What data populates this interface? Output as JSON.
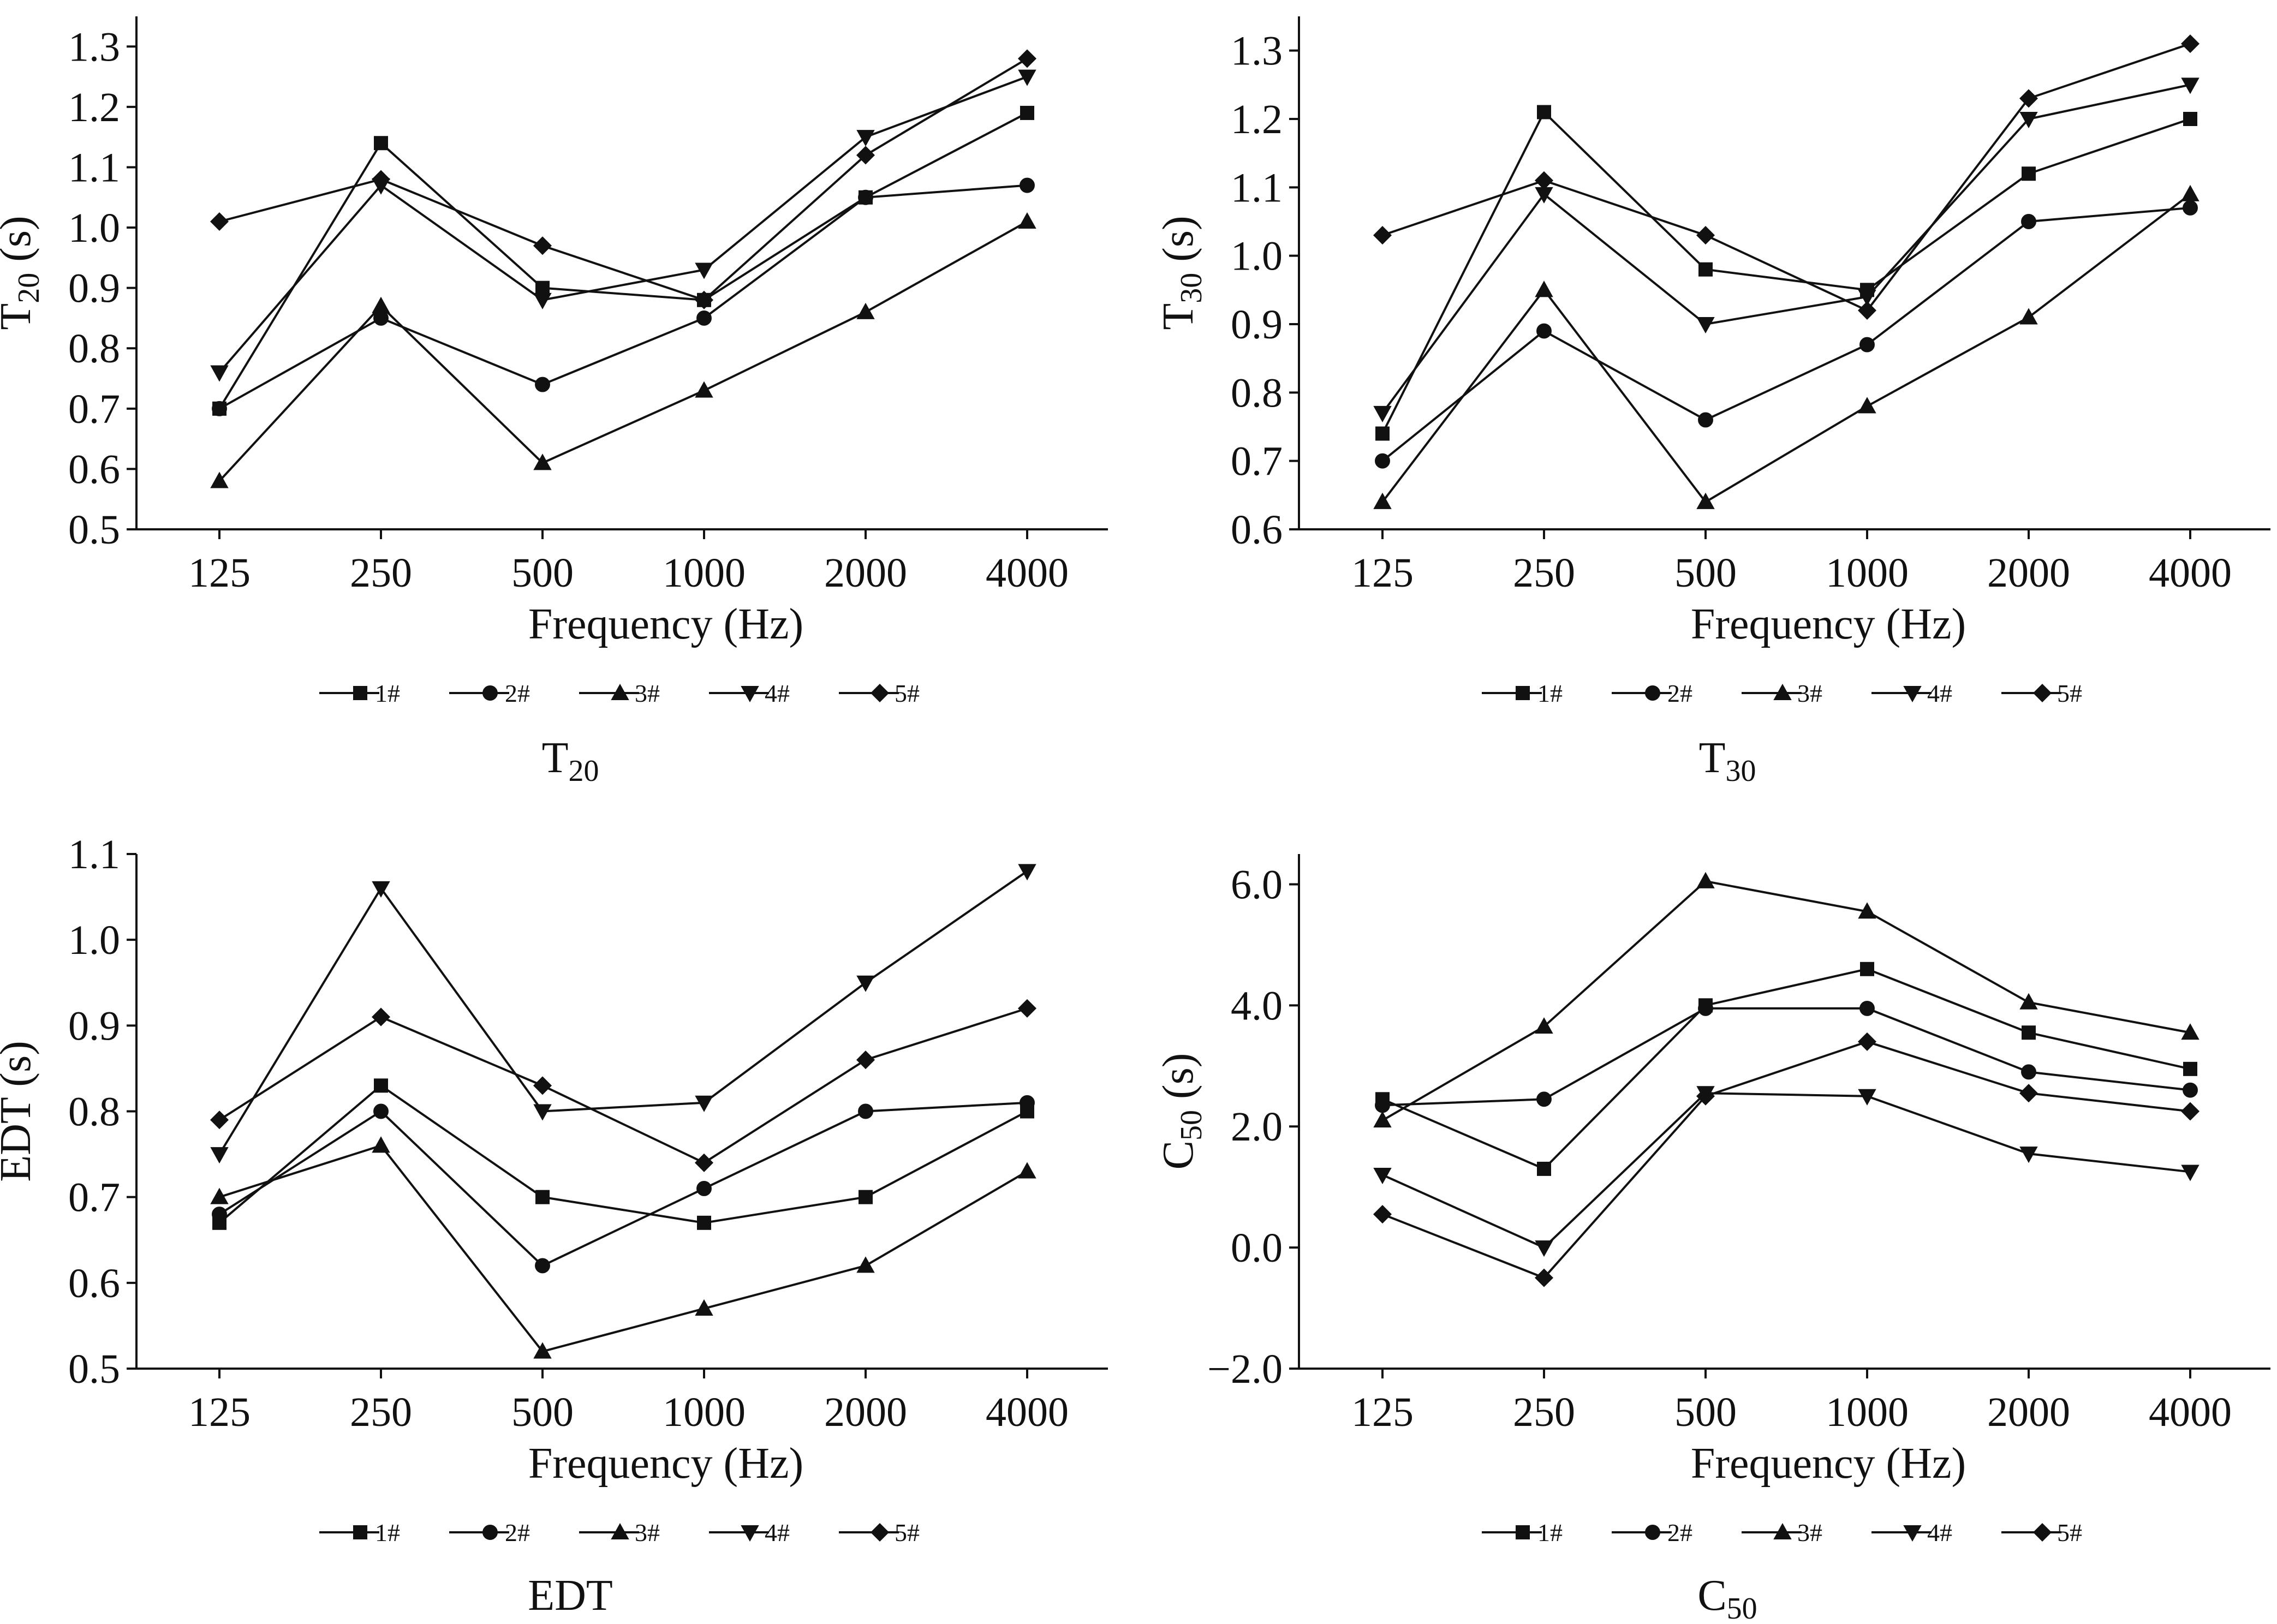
{
  "figure": {
    "captions": [
      {
        "main": "T",
        "sub": "20"
      },
      {
        "main": "T",
        "sub": "30"
      },
      {
        "main": "EDT",
        "sub": ""
      },
      {
        "main": "C",
        "sub": "50"
      }
    ]
  },
  "style": {
    "line_color": "#111111",
    "text_color": "#111111",
    "background": "#ffffff"
  },
  "chart_data": [
    {
      "type": "line",
      "title": "T20",
      "xlabel": "Frequency (Hz)",
      "ylabel": {
        "main": "T",
        "sub": "20",
        "suffix": " (s)"
      },
      "categories": [
        "125",
        "250",
        "500",
        "1000",
        "2000",
        "4000"
      ],
      "ylim": [
        0.5,
        1.35
      ],
      "yticks": [
        0.5,
        0.6,
        0.7,
        0.8,
        0.9,
        1.0,
        1.1,
        1.2,
        1.3
      ],
      "ytick_labels": [
        "0.5",
        "0.6",
        "0.7",
        "0.8",
        "0.9",
        "1.0",
        "1.1",
        "1.2",
        "1.3"
      ],
      "series": [
        {
          "name": "1#",
          "marker": "square",
          "values": [
            0.7,
            1.14,
            0.9,
            0.88,
            1.05,
            1.19
          ]
        },
        {
          "name": "2#",
          "marker": "circle",
          "values": [
            0.7,
            0.85,
            0.74,
            0.85,
            1.05,
            1.07
          ]
        },
        {
          "name": "3#",
          "marker": "triangle-up",
          "values": [
            0.58,
            0.87,
            0.61,
            0.73,
            0.86,
            1.01
          ]
        },
        {
          "name": "4#",
          "marker": "triangle-down",
          "values": [
            0.76,
            1.07,
            0.88,
            0.93,
            1.15,
            1.25
          ]
        },
        {
          "name": "5#",
          "marker": "diamond",
          "values": [
            1.01,
            1.08,
            0.97,
            0.88,
            1.12,
            1.28
          ]
        }
      ],
      "legend": "bottom"
    },
    {
      "type": "line",
      "title": "T30",
      "xlabel": "Frequency (Hz)",
      "ylabel": {
        "main": "T",
        "sub": "30",
        "suffix": " (s)"
      },
      "categories": [
        "125",
        "250",
        "500",
        "1000",
        "2000",
        "4000"
      ],
      "ylim": [
        0.6,
        1.35
      ],
      "yticks": [
        0.6,
        0.7,
        0.8,
        0.9,
        1.0,
        1.1,
        1.2,
        1.3
      ],
      "ytick_labels": [
        "0.6",
        "0.7",
        "0.8",
        "0.9",
        "1.0",
        "1.1",
        "1.2",
        "1.3"
      ],
      "series": [
        {
          "name": "1#",
          "marker": "square",
          "values": [
            0.74,
            1.21,
            0.98,
            0.95,
            1.12,
            1.2
          ]
        },
        {
          "name": "2#",
          "marker": "circle",
          "values": [
            0.7,
            0.89,
            0.76,
            0.87,
            1.05,
            1.07
          ]
        },
        {
          "name": "3#",
          "marker": "triangle-up",
          "values": [
            0.64,
            0.95,
            0.64,
            0.78,
            0.91,
            1.09
          ]
        },
        {
          "name": "4#",
          "marker": "triangle-down",
          "values": [
            0.77,
            1.09,
            0.9,
            0.94,
            1.2,
            1.25
          ]
        },
        {
          "name": "5#",
          "marker": "diamond",
          "values": [
            1.03,
            1.11,
            1.03,
            0.92,
            1.23,
            1.31
          ]
        }
      ],
      "legend": "bottom"
    },
    {
      "type": "line",
      "title": "EDT",
      "xlabel": "Frequency (Hz)",
      "ylabel": {
        "main": "EDT",
        "sub": "",
        "suffix": " (s)"
      },
      "categories": [
        "125",
        "250",
        "500",
        "1000",
        "2000",
        "4000"
      ],
      "ylim": [
        0.5,
        1.1
      ],
      "yticks": [
        0.5,
        0.6,
        0.7,
        0.8,
        0.9,
        1.0,
        1.1
      ],
      "ytick_labels": [
        "0.5",
        "0.6",
        "0.7",
        "0.8",
        "0.9",
        "1.0",
        "1.1"
      ],
      "series": [
        {
          "name": "1#",
          "marker": "square",
          "values": [
            0.67,
            0.83,
            0.7,
            0.67,
            0.7,
            0.8
          ]
        },
        {
          "name": "2#",
          "marker": "circle",
          "values": [
            0.68,
            0.8,
            0.62,
            0.71,
            0.8,
            0.81
          ]
        },
        {
          "name": "3#",
          "marker": "triangle-up",
          "values": [
            0.7,
            0.76,
            0.52,
            0.57,
            0.62,
            0.73
          ]
        },
        {
          "name": "4#",
          "marker": "triangle-down",
          "values": [
            0.75,
            1.06,
            0.8,
            0.81,
            0.95,
            1.08
          ]
        },
        {
          "name": "5#",
          "marker": "diamond",
          "values": [
            0.79,
            0.91,
            0.83,
            0.74,
            0.86,
            0.92
          ]
        }
      ],
      "legend": "bottom"
    },
    {
      "type": "line",
      "title": "C50",
      "xlabel": "Frequency (Hz)",
      "ylabel": {
        "main": "C",
        "sub": "50",
        "suffix": " (s)"
      },
      "categories": [
        "125",
        "250",
        "500",
        "1000",
        "2000",
        "4000"
      ],
      "ylim": [
        -2.0,
        6.5
      ],
      "yticks": [
        -2.0,
        0.0,
        2.0,
        4.0,
        6.0
      ],
      "ytick_labels": [
        "−2.0",
        "0.0",
        "2.0",
        "4.0",
        "6.0"
      ],
      "series": [
        {
          "name": "1#",
          "marker": "square",
          "values": [
            2.45,
            1.3,
            4.0,
            4.6,
            3.55,
            2.95
          ]
        },
        {
          "name": "2#",
          "marker": "circle",
          "values": [
            2.35,
            2.45,
            3.95,
            3.95,
            2.9,
            2.6
          ]
        },
        {
          "name": "3#",
          "marker": "triangle-up",
          "values": [
            2.1,
            3.65,
            6.05,
            5.55,
            4.05,
            3.55
          ]
        },
        {
          "name": "4#",
          "marker": "triangle-down",
          "values": [
            1.2,
            0.0,
            2.55,
            2.5,
            1.55,
            1.25
          ]
        },
        {
          "name": "5#",
          "marker": "diamond",
          "values": [
            0.55,
            -0.5,
            2.5,
            3.4,
            2.55,
            2.25
          ]
        }
      ],
      "legend": "bottom"
    }
  ]
}
